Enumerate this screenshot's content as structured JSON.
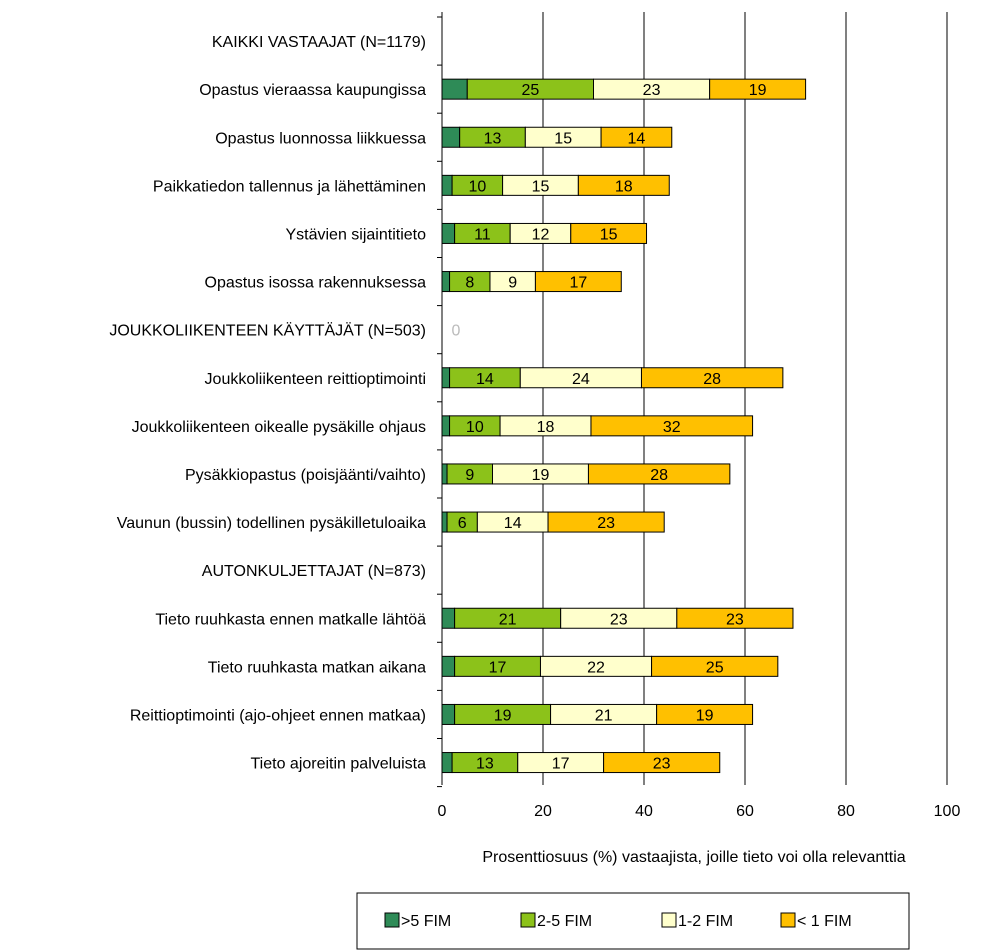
{
  "chart_data": {
    "type": "bar",
    "orientation": "horizontal",
    "stacked": true,
    "title": "",
    "xlabel": "Prosenttiosuus (%) vastaajista, joille tieto voi olla relevanttia",
    "ylabel": "",
    "xlim": [
      0,
      100
    ],
    "xticks": [
      0,
      20,
      40,
      60,
      80,
      100
    ],
    "grid": "vertical",
    "legend_position": "bottom",
    "categories": [
      "KAIKKI VASTAAJAT (N=1179)",
      "Opastus vieraassa kaupungissa",
      "Opastus luonnossa liikkuessa",
      "Paikkatiedon tallennus ja lähettäminen",
      "Ystävien sijaintitieto",
      "Opastus isossa rakennuksessa",
      "JOUKKOLIIKENTEEN KÄYTTÄJÄT (N=503)",
      "Joukkoliikenteen reittioptimointi",
      "Joukkoliikenteen oikealle pysäkille ohjaus",
      "Pysäkkiopastus (poisjäänti/vaihto)",
      "Vaunun (bussin) todellinen pysäkilletuloaika",
      "AUTONKULJETTAJAT (N=873)",
      "Tieto ruuhkasta ennen matkalle lähtöä",
      "Tieto ruuhkasta matkan aikana",
      "Reittioptimointi (ajo-ohjeet ennen matkaa)",
      "Tieto ajoreitin palveluista"
    ],
    "series": [
      {
        "name": ">5 FIM",
        "color": "#2e8b57",
        "values": [
          null,
          5,
          3.5,
          2,
          2.5,
          1.5,
          null,
          1.5,
          1.5,
          1,
          1,
          null,
          2.5,
          2.5,
          2.5,
          2
        ]
      },
      {
        "name": "2-5 FIM",
        "color": "#8cc21a",
        "values": [
          null,
          25,
          13,
          10,
          11,
          8,
          null,
          14,
          10,
          9,
          6,
          null,
          21,
          17,
          19,
          13
        ]
      },
      {
        "name": "1-2 FIM",
        "color": "#ffffcc",
        "values": [
          null,
          23,
          15,
          15,
          12,
          9,
          null,
          24,
          18,
          19,
          14,
          null,
          23,
          22,
          21,
          17
        ]
      },
      {
        "name": "< 1 FIM",
        "color": "#ffc000",
        "values": [
          null,
          19,
          14,
          18,
          15,
          17,
          null,
          28,
          32,
          28,
          23,
          null,
          23,
          25,
          19,
          23
        ]
      }
    ],
    "extra_labels": [
      {
        "category_index": 6,
        "text": "0",
        "color": "#bbbbbb"
      }
    ],
    "data_labels_for_series": [
      "2-5 FIM",
      "1-2 FIM",
      "< 1 FIM"
    ]
  }
}
